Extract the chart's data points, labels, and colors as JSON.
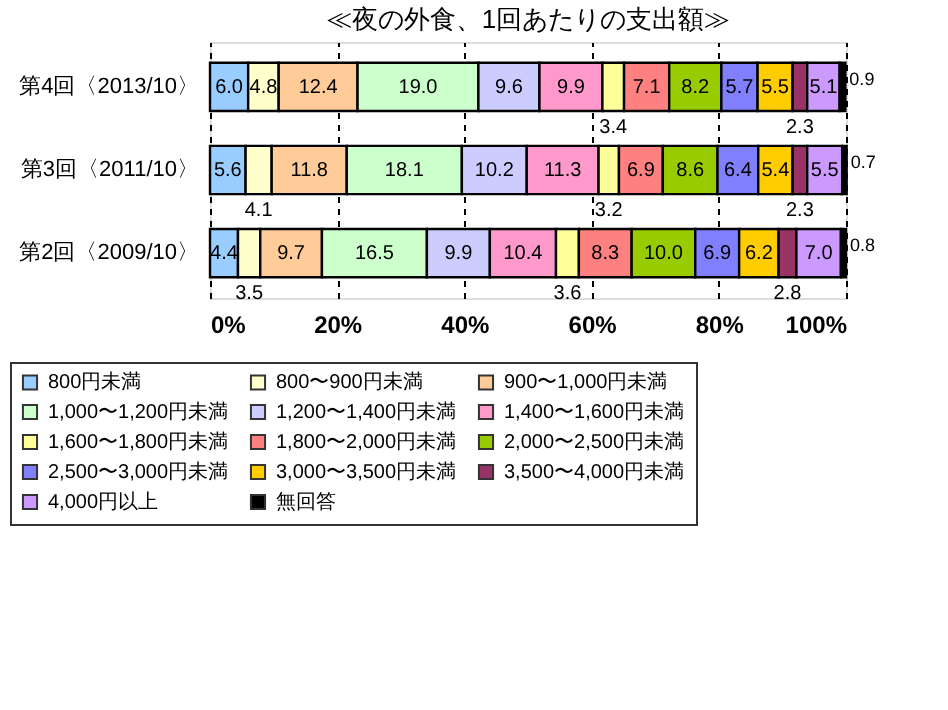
{
  "chart_data": {
    "type": "bar",
    "orientation": "horizontal",
    "stacked": true,
    "title": "≪夜の外食、1回あたりの支出額≫",
    "categories": [
      "第4回〈2013/10〉",
      "第3回〈2011/10〉",
      "第2回〈2009/10〉"
    ],
    "series": [
      {
        "name": "800円未満",
        "color": "#99ccff",
        "values": [
          6.0,
          5.6,
          4.4
        ],
        "value_labels": [
          "6.0",
          "5.6",
          "4.4"
        ]
      },
      {
        "name": "800〜900円未満",
        "color": "#ffffcc",
        "values": [
          4.8,
          4.1,
          3.5
        ],
        "value_labels": [
          "4.8",
          "4.1",
          "3.5"
        ]
      },
      {
        "name": "900〜1,000円未満",
        "color": "#ffcc99",
        "values": [
          12.4,
          11.8,
          9.7
        ],
        "value_labels": [
          "12.4",
          "11.8",
          "9.7"
        ]
      },
      {
        "name": "1,000〜1,200円未満",
        "color": "#ccffcc",
        "values": [
          19.0,
          18.1,
          16.5
        ],
        "value_labels": [
          "19.0",
          "18.1",
          "16.5"
        ]
      },
      {
        "name": "1,200〜1,400円未満",
        "color": "#ccccff",
        "values": [
          9.6,
          10.2,
          9.9
        ],
        "value_labels": [
          "9.6",
          "10.2",
          "9.9"
        ]
      },
      {
        "name": "1,400〜1,600円未満",
        "color": "#ff99cc",
        "values": [
          9.9,
          11.3,
          10.4
        ],
        "value_labels": [
          "9.9",
          "11.3",
          "10.4"
        ]
      },
      {
        "name": "1,600〜1,800円未満",
        "color": "#ffff99",
        "values": [
          3.4,
          3.2,
          3.6
        ],
        "value_labels": [
          "3.4",
          "3.2",
          "3.6"
        ]
      },
      {
        "name": "1,800〜2,000円未満",
        "color": "#ff8080",
        "values": [
          7.1,
          6.9,
          8.3
        ],
        "value_labels": [
          "7.1",
          "6.9",
          "8.3"
        ]
      },
      {
        "name": "2,000〜2,500円未満",
        "color": "#99cc00",
        "values": [
          8.2,
          8.6,
          10.0
        ],
        "value_labels": [
          "8.2",
          "8.6",
          "10.0"
        ]
      },
      {
        "name": "2,500〜3,000円未満",
        "color": "#8080ff",
        "values": [
          5.7,
          6.4,
          6.9
        ],
        "value_labels": [
          "5.7",
          "6.4",
          "6.9"
        ]
      },
      {
        "name": "3,000〜3,500円未満",
        "color": "#ffcc00",
        "values": [
          5.5,
          5.4,
          6.2
        ],
        "value_labels": [
          "5.5",
          "5.4",
          "6.2"
        ]
      },
      {
        "name": "3,500〜4,000円未満",
        "color": "#993366",
        "values": [
          2.3,
          2.3,
          2.8
        ],
        "value_labels": [
          "2.3",
          "2.3",
          "2.8"
        ]
      },
      {
        "name": "4,000円以上",
        "color": "#cc99ff",
        "values": [
          5.1,
          5.5,
          7.0
        ],
        "value_labels": [
          "5.1",
          "5.5",
          "7.0"
        ]
      },
      {
        "name": "無回答",
        "color": "#000000",
        "values": [
          0.9,
          0.7,
          0.8
        ],
        "value_labels": [
          "0.9",
          "0.7",
          "0.8"
        ]
      }
    ],
    "xlim": [
      0,
      100
    ],
    "xticks": [
      {
        "value": 0,
        "label": "0%"
      },
      {
        "value": 20,
        "label": "20%"
      },
      {
        "value": 40,
        "label": "40%"
      },
      {
        "value": 60,
        "label": "60%"
      },
      {
        "value": 80,
        "label": "80%"
      },
      {
        "value": 100,
        "label": "100%"
      }
    ],
    "grid": "x",
    "legend": "bottom"
  }
}
